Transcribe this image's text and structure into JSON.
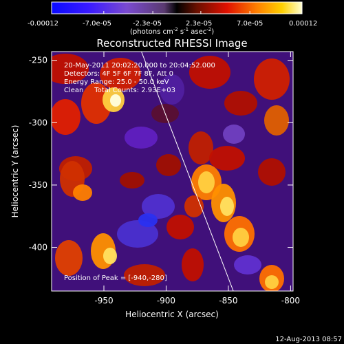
{
  "colorbar": {
    "tick_labels": [
      "-0.00012",
      "-7.0e-05",
      "-2.3e-05",
      "2.3e-05",
      "7.0e-05",
      "0.00012"
    ],
    "tick_values": [
      -0.00012,
      -7e-05,
      -2.3e-05,
      2.3e-05,
      7e-05,
      0.00012
    ],
    "range": [
      -0.00012,
      0.00012
    ],
    "units_label": "(photons cm",
    "units_exp1": "-2",
    "units_mid": " s",
    "units_exp2": "-1",
    "units_tail": " asec",
    "units_exp3": "-2",
    "units_close": ")"
  },
  "plot": {
    "title": "Reconstructed RHESSI Image",
    "xlabel": "Heliocentric X (arcsec)",
    "ylabel": "Heliocentric Y (arcsec)",
    "xlim": [
      -992,
      -798
    ],
    "ylim": [
      -435,
      -243
    ],
    "x_ticks": [
      "-950",
      "-900",
      "-850",
      "-800"
    ],
    "x_tick_values": [
      -950,
      -900,
      -850,
      -800
    ],
    "y_ticks": [
      "-250",
      "-300",
      "-350",
      "-400"
    ],
    "y_tick_values": [
      -250,
      -300,
      -350,
      -400
    ]
  },
  "annotations": {
    "line1": "20-May-2011 20:02:20.000 to 20:04:52.000",
    "line2": "Detectors: 4F 5F 6F 7F 8F, Att 0",
    "line3": "Energy Range: 25.0 - 50.0 keV",
    "line4": "Clean     Total Counts: 2.93E+03",
    "peak": "Position of Peak = [-940,-280]"
  },
  "limb_line": {
    "x1": -921,
    "y1": -240,
    "x2": -846,
    "y2": -435
  },
  "timestamp": "12-Aug-2013 08:57",
  "colors": {
    "background": "#000000",
    "text": "#ffffff",
    "negative": "#3a1aff",
    "positive": "#ffff80"
  }
}
